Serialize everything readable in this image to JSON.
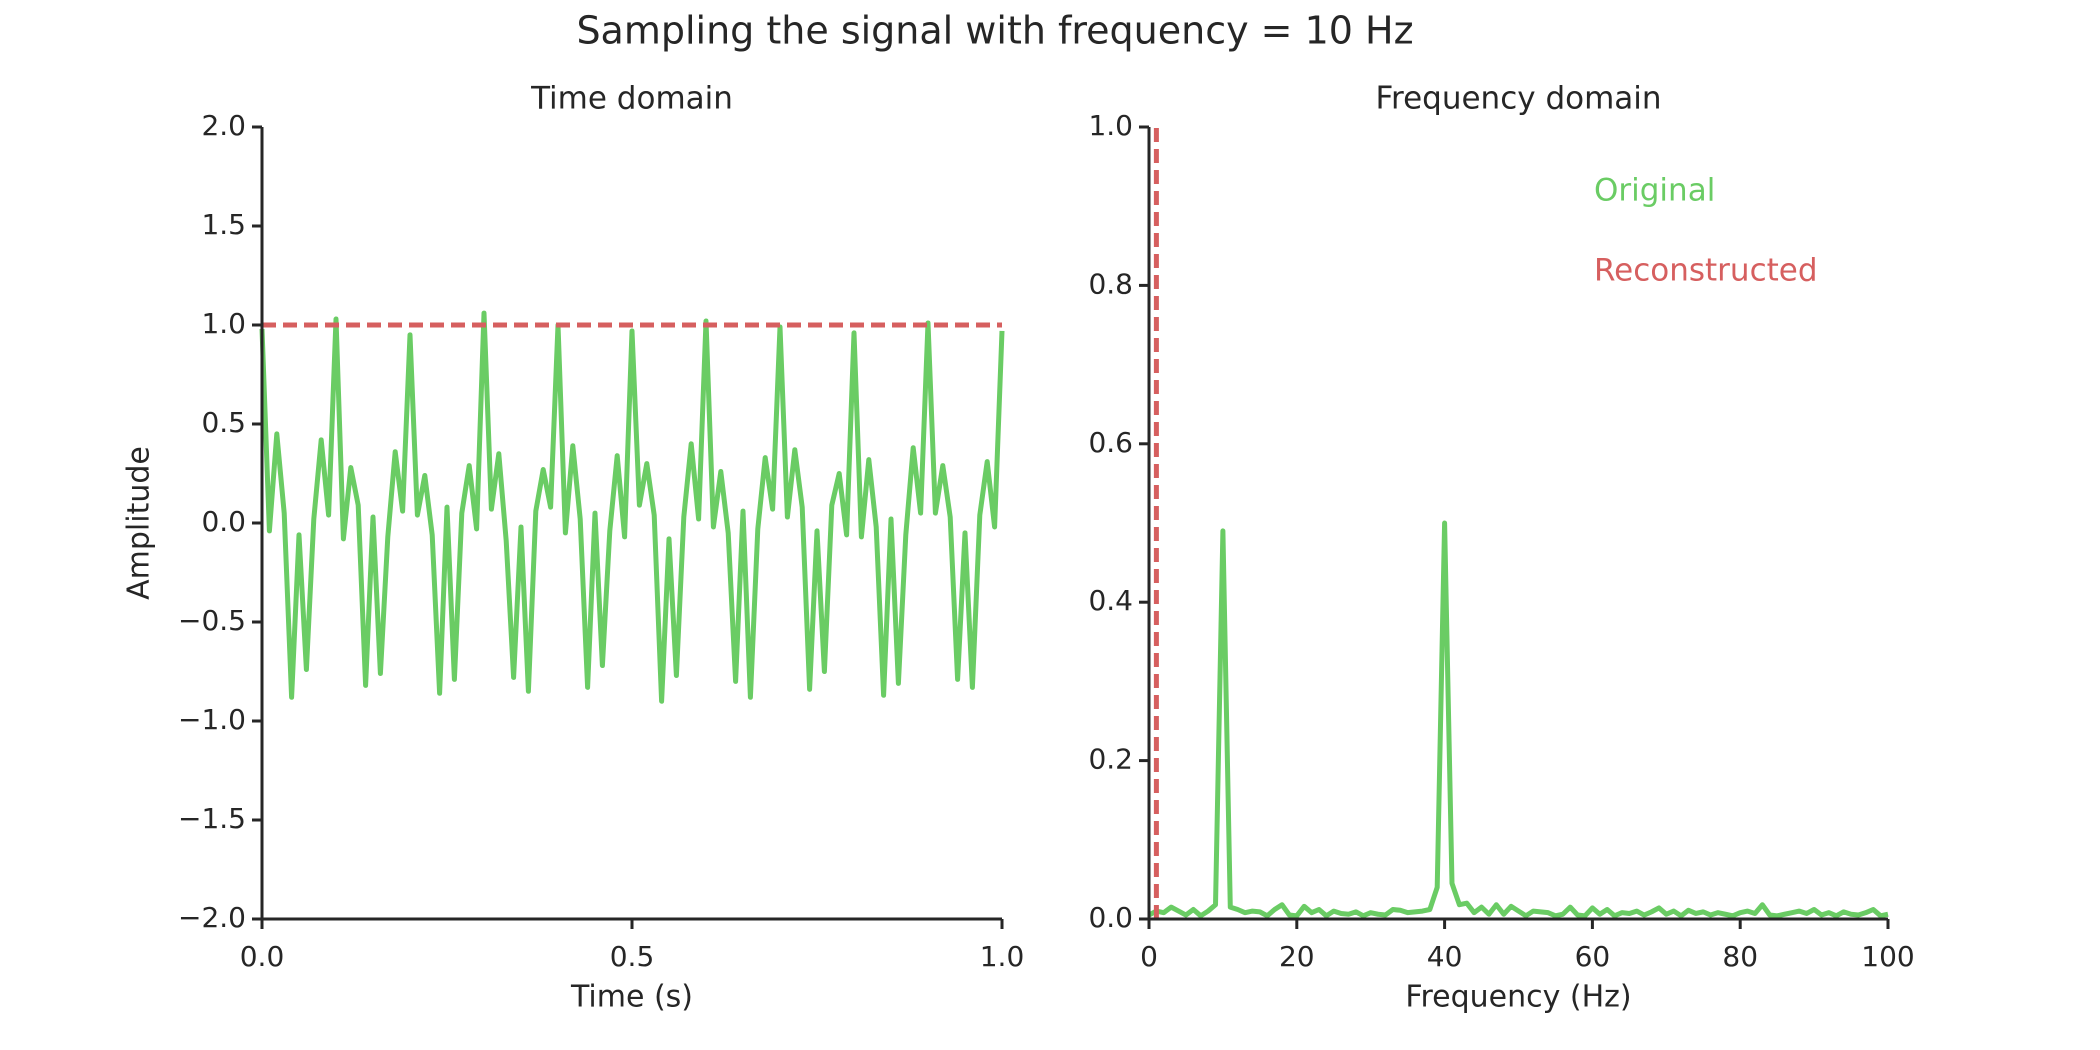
{
  "title": "Sampling the signal with frequency = 10 Hz",
  "chart_data": [
    {
      "type": "line",
      "title": "Time domain",
      "x_label": "Time (s)",
      "y_label": "Amplitude",
      "xlim": [
        0,
        1
      ],
      "ylim": [
        -2,
        2
      ],
      "xticks": [
        {
          "value": 0,
          "label": "0.0"
        },
        {
          "value": 0.5,
          "label": "0.5"
        },
        {
          "value": 1,
          "label": "1.0"
        }
      ],
      "yticks": [
        {
          "value": -2,
          "label": "−2.0"
        },
        {
          "value": -1.5,
          "label": "−1.5"
        },
        {
          "value": -1,
          "label": "−1.0"
        },
        {
          "value": -0.5,
          "label": "−0.5"
        },
        {
          "value": 0,
          "label": "0.0"
        },
        {
          "value": 0.5,
          "label": "0.5"
        },
        {
          "value": 1,
          "label": "1.0"
        },
        {
          "value": 1.5,
          "label": "1.5"
        },
        {
          "value": 2,
          "label": "2.0"
        }
      ],
      "series": [
        {
          "color": "#6acc64",
          "linestyle": "solid",
          "x": [
            0,
            0.01,
            0.02,
            0.03,
            0.04,
            0.05,
            0.06,
            0.07,
            0.08,
            0.09,
            0.1,
            0.11,
            0.12,
            0.13,
            0.14,
            0.15,
            0.16,
            0.17,
            0.18,
            0.19,
            0.2,
            0.21,
            0.22,
            0.23,
            0.24,
            0.25,
            0.26,
            0.27,
            0.28,
            0.29,
            0.3,
            0.31,
            0.32,
            0.33,
            0.34,
            0.35,
            0.36,
            0.37,
            0.38,
            0.39,
            0.4,
            0.41,
            0.42,
            0.43,
            0.44,
            0.45,
            0.46,
            0.47,
            0.48,
            0.49,
            0.5,
            0.51,
            0.52,
            0.53,
            0.54,
            0.55,
            0.56,
            0.57,
            0.58,
            0.59,
            0.6,
            0.61,
            0.62,
            0.63,
            0.64,
            0.65,
            0.66,
            0.67,
            0.68,
            0.69,
            0.7,
            0.71,
            0.72,
            0.73,
            0.74,
            0.75,
            0.76,
            0.77,
            0.78,
            0.79,
            0.8,
            0.81,
            0.82,
            0.83,
            0.84,
            0.85,
            0.86,
            0.87,
            0.88,
            0.89,
            0.9,
            0.91,
            0.92,
            0.93,
            0.94,
            0.95,
            0.96,
            0.97,
            0.98,
            0.99,
            1
          ],
          "values": [
            0.98,
            -0.04,
            0.45,
            0.05,
            -0.88,
            -0.06,
            -0.74,
            0.02,
            0.42,
            0.04,
            1.03,
            -0.08,
            0.28,
            0.09,
            -0.82,
            0.03,
            -0.76,
            -0.07,
            0.36,
            0.06,
            0.95,
            0.04,
            0.24,
            -0.06,
            -0.86,
            0.08,
            -0.79,
            0.05,
            0.29,
            -0.03,
            1.06,
            0.07,
            0.35,
            -0.09,
            -0.78,
            -0.02,
            -0.85,
            0.06,
            0.27,
            0.08,
            1.0,
            -0.05,
            0.39,
            0.02,
            -0.83,
            0.05,
            -0.72,
            -0.04,
            0.34,
            -0.07,
            0.97,
            0.09,
            0.3,
            0.04,
            -0.9,
            -0.08,
            -0.77,
            0.03,
            0.4,
            0.02,
            1.02,
            -0.02,
            0.26,
            -0.05,
            -0.8,
            0.06,
            -0.88,
            -0.03,
            0.33,
            0.07,
            0.99,
            0.03,
            0.37,
            0.08,
            -0.84,
            -0.04,
            -0.75,
            0.09,
            0.25,
            -0.06,
            0.96,
            -0.07,
            0.32,
            -0.02,
            -0.87,
            0.02,
            -0.81,
            -0.06,
            0.38,
            0.05,
            1.01,
            0.05,
            0.29,
            0.03,
            -0.79,
            -0.05,
            -0.83,
            0.04,
            0.31,
            -0.02,
            0.97
          ]
        },
        {
          "color": "#d65f5f",
          "linestyle": "dashed",
          "x": [
            0,
            1
          ],
          "values": [
            1,
            1
          ]
        }
      ]
    },
    {
      "type": "line",
      "title": "Frequency domain",
      "x_label": "Frequency (Hz)",
      "xlim": [
        0,
        100
      ],
      "ylim": [
        0,
        1
      ],
      "xticks": [
        0,
        20,
        40,
        60,
        80,
        100
      ],
      "yticks": [
        {
          "value": 0,
          "label": "0.0"
        },
        {
          "value": 0.2,
          "label": "0.2"
        },
        {
          "value": 0.4,
          "label": "0.4"
        },
        {
          "value": 0.6,
          "label": "0.6"
        },
        {
          "value": 0.8,
          "label": "0.8"
        },
        {
          "value": 1,
          "label": "1.0"
        }
      ],
      "legend": "upper right",
      "series": [
        {
          "name": "Original",
          "color": "#6acc64",
          "linestyle": "solid",
          "x": [
            0,
            1,
            2,
            3,
            4,
            5,
            6,
            7,
            8,
            9,
            10,
            11,
            12,
            13,
            14,
            15,
            16,
            17,
            18,
            19,
            20,
            21,
            22,
            23,
            24,
            25,
            26,
            27,
            28,
            29,
            30,
            31,
            32,
            33,
            34,
            35,
            36,
            37,
            38,
            39,
            40,
            41,
            42,
            43,
            44,
            45,
            46,
            47,
            48,
            49,
            50,
            51,
            52,
            53,
            54,
            55,
            56,
            57,
            58,
            59,
            60,
            61,
            62,
            63,
            64,
            65,
            66,
            67,
            68,
            69,
            70,
            71,
            72,
            73,
            74,
            75,
            76,
            77,
            78,
            79,
            80,
            81,
            82,
            83,
            84,
            85,
            86,
            87,
            88,
            89,
            90,
            91,
            92,
            93,
            94,
            95,
            96,
            97,
            98,
            99,
            100
          ],
          "values": [
            0.005,
            0.01,
            0.008,
            0.015,
            0.01,
            0.005,
            0.012,
            0.004,
            0.01,
            0.018,
            0.49,
            0.015,
            0.012,
            0.008,
            0.01,
            0.009,
            0.004,
            0.012,
            0.018,
            0.005,
            0.004,
            0.016,
            0.008,
            0.012,
            0.004,
            0.01,
            0.007,
            0.006,
            0.009,
            0.004,
            0.008,
            0.006,
            0.005,
            0.012,
            0.011,
            0.008,
            0.009,
            0.01,
            0.012,
            0.04,
            0.5,
            0.045,
            0.018,
            0.02,
            0.008,
            0.015,
            0.006,
            0.018,
            0.006,
            0.016,
            0.01,
            0.004,
            0.01,
            0.009,
            0.008,
            0.004,
            0.006,
            0.015,
            0.005,
            0.004,
            0.014,
            0.006,
            0.012,
            0.004,
            0.008,
            0.007,
            0.01,
            0.005,
            0.009,
            0.014,
            0.006,
            0.01,
            0.004,
            0.011,
            0.007,
            0.009,
            0.005,
            0.008,
            0.006,
            0.004,
            0.008,
            0.01,
            0.007,
            0.018,
            0.005,
            0.004,
            0.006,
            0.008,
            0.01,
            0.007,
            0.012,
            0.005,
            0.008,
            0.004,
            0.009,
            0.006,
            0.005,
            0.008,
            0.012,
            0.004,
            0.006
          ]
        },
        {
          "name": "Reconstructed",
          "color": "#d65f5f",
          "linestyle": "dashed",
          "x": [
            1,
            1
          ],
          "values": [
            0,
            1
          ]
        }
      ]
    }
  ]
}
